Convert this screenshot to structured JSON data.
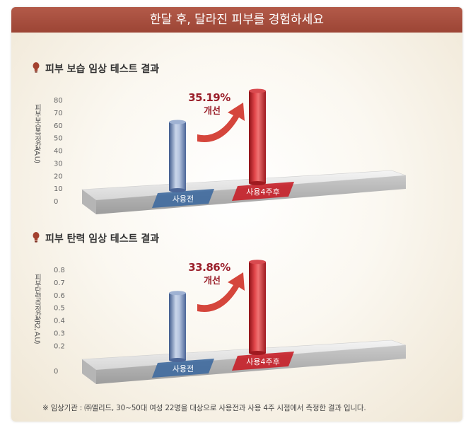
{
  "header": {
    "title": "한달 후, 달라진 피부를 경험하세요"
  },
  "colors": {
    "banner": "#a84f3f",
    "before_bar": "#6c84b0",
    "after_bar": "#cc2f36",
    "accent_text": "#9a1f2a",
    "arrow": "#d5463c"
  },
  "chart_data": [
    {
      "type": "bar",
      "title": "피부 보습 임상 테스트 결과",
      "ylabel": "피부보습측정값(A.U)",
      "yticks": [
        "0",
        "10",
        "20",
        "30",
        "40",
        "50",
        "60",
        "70",
        "80"
      ],
      "ylim": [
        0,
        80
      ],
      "categories": [
        "사용전",
        "사용4주후"
      ],
      "values": [
        54,
        73
      ],
      "annotation": [
        "35.19%",
        "개선"
      ]
    },
    {
      "type": "bar",
      "title": "피부 탄력 임상 테스트 결과",
      "ylabel": "피부탄력측정값(R2, A.U)",
      "yticks": [
        "0",
        "0.2",
        "0.3",
        "0.4",
        "0.5",
        "0.6",
        "0.7",
        "0.8"
      ],
      "ylim": [
        0,
        0.8
      ],
      "categories": [
        "사용전",
        "사용4주후"
      ],
      "values": [
        0.53,
        0.72
      ],
      "annotation": [
        "33.86%",
        "개선"
      ]
    }
  ],
  "footnote": "※ 임상기관 : ㈜엘리드, 30~50대 여성 22명을 대상으로 사용전과 사용 4주 시점에서 측정한 결과 입니다."
}
